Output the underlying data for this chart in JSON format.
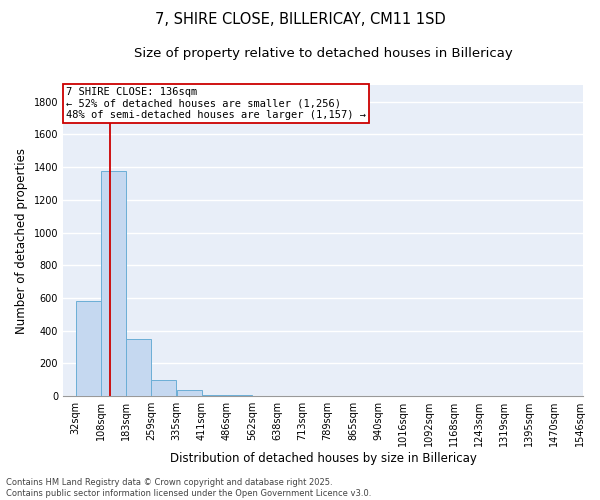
{
  "title": "7, SHIRE CLOSE, BILLERICAY, CM11 1SD",
  "subtitle": "Size of property relative to detached houses in Billericay",
  "xlabel": "Distribution of detached houses by size in Billericay",
  "ylabel": "Number of detached properties",
  "bin_edges": [
    32,
    108,
    183,
    259,
    335,
    411,
    486,
    562,
    638,
    713,
    789,
    865,
    940,
    1016,
    1092,
    1168,
    1243,
    1319,
    1395,
    1470,
    1546
  ],
  "bar_heights": [
    580,
    1375,
    350,
    100,
    35,
    10,
    5,
    3,
    2,
    1,
    1,
    1,
    1,
    0,
    0,
    0,
    0,
    0,
    0,
    0
  ],
  "bar_color": "#c5d8f0",
  "bar_edge_color": "#6baed6",
  "vline_x": 136,
  "vline_color": "#cc0000",
  "annotation_text": "7 SHIRE CLOSE: 136sqm\n← 52% of detached houses are smaller (1,256)\n48% of semi-detached houses are larger (1,157) →",
  "ylim": [
    0,
    1900
  ],
  "yticks": [
    0,
    200,
    400,
    600,
    800,
    1000,
    1200,
    1400,
    1600,
    1800
  ],
  "background_color": "#e8eef8",
  "grid_color": "#ffffff",
  "footer_text": "Contains HM Land Registry data © Crown copyright and database right 2025.\nContains public sector information licensed under the Open Government Licence v3.0.",
  "title_fontsize": 10.5,
  "subtitle_fontsize": 9.5,
  "axis_label_fontsize": 8.5,
  "tick_fontsize": 7,
  "annotation_fontsize": 7.5,
  "footer_fontsize": 6
}
